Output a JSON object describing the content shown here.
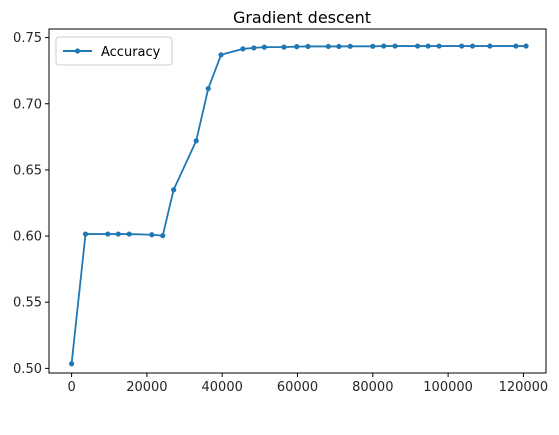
{
  "chart_data": {
    "type": "line",
    "title": "Gradient descent",
    "xlabel": "",
    "ylabel": "",
    "xlim": [
      -6000,
      126000
    ],
    "ylim": [
      0.4965,
      0.7565
    ],
    "xticks": [
      0,
      20000,
      40000,
      60000,
      80000,
      100000,
      120000
    ],
    "yticks": [
      0.5,
      0.55,
      0.6,
      0.65,
      0.7,
      0.75
    ],
    "xtick_labels": [
      "0",
      "20000",
      "40000",
      "60000",
      "80000",
      "100000",
      "120000"
    ],
    "ytick_labels": [
      "0.50",
      "0.55",
      "0.60",
      "0.65",
      "0.70",
      "0.75"
    ],
    "grid": false,
    "legend": {
      "position": "top-left"
    },
    "series": [
      {
        "name": "Accuracy",
        "color": "#1f77b4",
        "marker": "circle",
        "x": [
          0,
          3700,
          9600,
          12400,
          15300,
          21300,
          24200,
          27100,
          33100,
          36300,
          39700,
          45500,
          48400,
          51200,
          56400,
          59800,
          62800,
          68200,
          71000,
          74000,
          80000,
          82900,
          85900,
          91900,
          94700,
          97600,
          103600,
          106500,
          111100,
          118000,
          120700
        ],
        "values": [
          0.5035,
          0.6015,
          0.6015,
          0.6015,
          0.6015,
          0.601,
          0.6003,
          0.635,
          0.672,
          0.7115,
          0.737,
          0.7415,
          0.7422,
          0.7428,
          0.7428,
          0.7432,
          0.7433,
          0.7433,
          0.7433,
          0.7434,
          0.7434,
          0.7436,
          0.7436,
          0.7436,
          0.7436,
          0.7436,
          0.7436,
          0.7436,
          0.7436,
          0.7436,
          0.7436
        ]
      }
    ]
  }
}
